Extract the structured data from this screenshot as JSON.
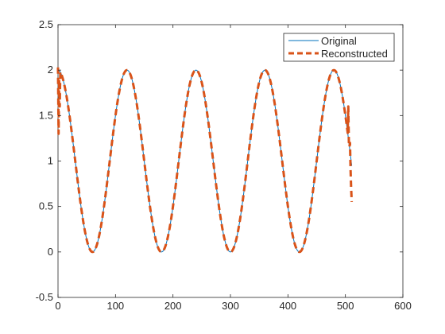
{
  "chart_data": {
    "type": "line",
    "title": "",
    "xlabel": "",
    "ylabel": "",
    "xlim": [
      0,
      600
    ],
    "ylim": [
      -0.5,
      2.5
    ],
    "xticks": [
      0,
      100,
      200,
      300,
      400,
      500,
      600
    ],
    "yticks": [
      -0.5,
      0,
      0.5,
      1,
      1.5,
      2,
      2.5
    ],
    "grid": false,
    "legend_position": "top-right",
    "series": [
      {
        "name": "Original",
        "color": "#0072BD",
        "style": "solid",
        "formula": "1 + cos(2*pi*x/120)",
        "x_range": [
          0,
          511
        ]
      },
      {
        "name": "Reconstructed",
        "color": "#D95319",
        "style": "dashed",
        "formula": "1 + cos(2*pi*x/120)",
        "x_range": [
          0,
          511
        ],
        "edge_points": [
          {
            "x": 0,
            "y": 2.03
          },
          {
            "x": 1,
            "y": 1.3
          },
          {
            "x": 2,
            "y": 1.9
          },
          {
            "x": 3,
            "y": 1.6
          },
          {
            "x": 4,
            "y": 1.98
          },
          {
            "x": 505,
            "y": 1.6
          },
          {
            "x": 508,
            "y": 1.2
          },
          {
            "x": 509,
            "y": 0.9
          },
          {
            "x": 510,
            "y": 0.7
          },
          {
            "x": 511,
            "y": 0.55
          }
        ]
      }
    ]
  }
}
